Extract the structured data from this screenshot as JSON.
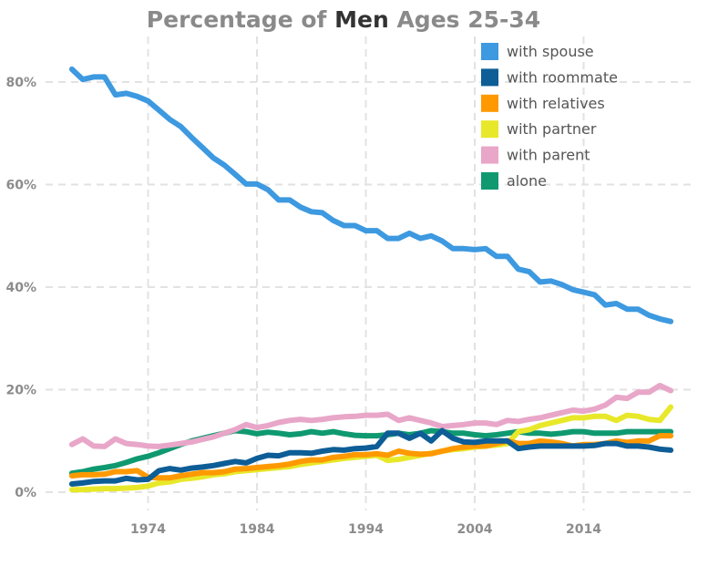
{
  "chart_data": {
    "type": "line",
    "title_parts": [
      "Percentage of ",
      "Men",
      " Ages 25-34"
    ],
    "xlabel": "",
    "ylabel": "",
    "xlim": [
      1965,
      2024
    ],
    "ylim": [
      0,
      0.88
    ],
    "grid": true,
    "legend_position": "top-right",
    "x_ticks": [
      1974,
      1984,
      1994,
      2004,
      2014
    ],
    "x_tick_labels": [
      "1974",
      "1984",
      "1994",
      "2004",
      "2014"
    ],
    "y_ticks": [
      0,
      0.2,
      0.4,
      0.6,
      0.8
    ],
    "y_tick_labels": [
      "0%",
      "20%",
      "40%",
      "60%",
      "80%"
    ],
    "x": [
      1967,
      1968,
      1969,
      1970,
      1971,
      1972,
      1973,
      1974,
      1975,
      1976,
      1977,
      1978,
      1979,
      1980,
      1981,
      1982,
      1983,
      1984,
      1985,
      1986,
      1987,
      1988,
      1989,
      1990,
      1991,
      1992,
      1993,
      1994,
      1995,
      1996,
      1997,
      1998,
      1999,
      2000,
      2001,
      2002,
      2003,
      2004,
      2005,
      2006,
      2007,
      2008,
      2009,
      2010,
      2011,
      2012,
      2013,
      2014,
      2015,
      2016,
      2017,
      2018,
      2019,
      2020,
      2021,
      2022
    ],
    "series": [
      {
        "name": "with spouse",
        "color": "#3d99e0",
        "values": [
          0.825,
          0.805,
          0.81,
          0.81,
          0.775,
          0.778,
          0.772,
          0.763,
          0.745,
          0.727,
          0.713,
          0.692,
          0.672,
          0.652,
          0.638,
          0.62,
          0.601,
          0.601,
          0.59,
          0.57,
          0.57,
          0.556,
          0.547,
          0.545,
          0.53,
          0.52,
          0.52,
          0.51,
          0.51,
          0.495,
          0.495,
          0.505,
          0.495,
          0.5,
          0.49,
          0.475,
          0.475,
          0.473,
          0.475,
          0.46,
          0.46,
          0.435,
          0.43,
          0.41,
          0.412,
          0.405,
          0.395,
          0.39,
          0.385,
          0.365,
          0.368,
          0.357,
          0.357,
          0.345,
          0.338,
          0.333
        ]
      },
      {
        "name": "with roommate",
        "color": "#0d5d96",
        "values": [
          0.016,
          0.018,
          0.021,
          0.022,
          0.022,
          0.027,
          0.024,
          0.025,
          0.042,
          0.046,
          0.043,
          0.047,
          0.049,
          0.052,
          0.056,
          0.06,
          0.057,
          0.066,
          0.072,
          0.071,
          0.077,
          0.077,
          0.076,
          0.08,
          0.083,
          0.082,
          0.085,
          0.086,
          0.089,
          0.115,
          0.115,
          0.105,
          0.115,
          0.1,
          0.12,
          0.105,
          0.098,
          0.097,
          0.1,
          0.1,
          0.1,
          0.085,
          0.088,
          0.09,
          0.09,
          0.09,
          0.09,
          0.09,
          0.091,
          0.095,
          0.095,
          0.09,
          0.09,
          0.088,
          0.084,
          0.082
        ]
      },
      {
        "name": "with relatives",
        "color": "#ff9900",
        "values": [
          0.032,
          0.034,
          0.034,
          0.035,
          0.04,
          0.04,
          0.042,
          0.029,
          0.028,
          0.028,
          0.032,
          0.035,
          0.038,
          0.038,
          0.04,
          0.045,
          0.046,
          0.048,
          0.05,
          0.052,
          0.055,
          0.06,
          0.063,
          0.063,
          0.068,
          0.07,
          0.073,
          0.073,
          0.075,
          0.072,
          0.08,
          0.076,
          0.074,
          0.075,
          0.08,
          0.085,
          0.088,
          0.09,
          0.09,
          0.095,
          0.1,
          0.095,
          0.095,
          0.1,
          0.098,
          0.095,
          0.09,
          0.093,
          0.093,
          0.095,
          0.1,
          0.097,
          0.1,
          0.1,
          0.11,
          0.11
        ]
      },
      {
        "name": "with partner",
        "color": "#e8e82a",
        "values": [
          0.005,
          0.005,
          0.006,
          0.007,
          0.007,
          0.008,
          0.009,
          0.012,
          0.018,
          0.02,
          0.025,
          0.027,
          0.03,
          0.034,
          0.036,
          0.04,
          0.042,
          0.044,
          0.046,
          0.048,
          0.05,
          0.054,
          0.057,
          0.06,
          0.063,
          0.066,
          0.068,
          0.07,
          0.072,
          0.062,
          0.064,
          0.068,
          0.072,
          0.076,
          0.08,
          0.083,
          0.085,
          0.088,
          0.09,
          0.092,
          0.095,
          0.118,
          0.122,
          0.13,
          0.135,
          0.14,
          0.145,
          0.145,
          0.148,
          0.148,
          0.14,
          0.15,
          0.148,
          0.142,
          0.14,
          0.166
        ]
      },
      {
        "name": "with parent",
        "color": "#e8a6c8",
        "values": [
          0.093,
          0.104,
          0.09,
          0.089,
          0.104,
          0.095,
          0.093,
          0.09,
          0.089,
          0.092,
          0.095,
          0.098,
          0.103,
          0.108,
          0.115,
          0.122,
          0.132,
          0.126,
          0.13,
          0.136,
          0.14,
          0.142,
          0.14,
          0.142,
          0.145,
          0.147,
          0.148,
          0.15,
          0.15,
          0.152,
          0.14,
          0.145,
          0.14,
          0.135,
          0.128,
          0.13,
          0.132,
          0.135,
          0.135,
          0.132,
          0.14,
          0.138,
          0.142,
          0.145,
          0.15,
          0.155,
          0.16,
          0.158,
          0.162,
          0.17,
          0.185,
          0.183,
          0.195,
          0.195,
          0.208,
          0.198
        ]
      },
      {
        "name": "alone",
        "color": "#0f9970",
        "values": [
          0.037,
          0.04,
          0.045,
          0.048,
          0.052,
          0.058,
          0.065,
          0.07,
          0.077,
          0.085,
          0.093,
          0.1,
          0.105,
          0.11,
          0.115,
          0.12,
          0.118,
          0.114,
          0.117,
          0.115,
          0.112,
          0.114,
          0.118,
          0.115,
          0.118,
          0.114,
          0.111,
          0.11,
          0.11,
          0.112,
          0.115,
          0.112,
          0.115,
          0.12,
          0.118,
          0.115,
          0.115,
          0.112,
          0.11,
          0.112,
          0.115,
          0.118,
          0.115,
          0.115,
          0.113,
          0.115,
          0.118,
          0.118,
          0.115,
          0.115,
          0.115,
          0.118,
          0.118,
          0.118,
          0.118,
          0.118
        ]
      }
    ]
  }
}
